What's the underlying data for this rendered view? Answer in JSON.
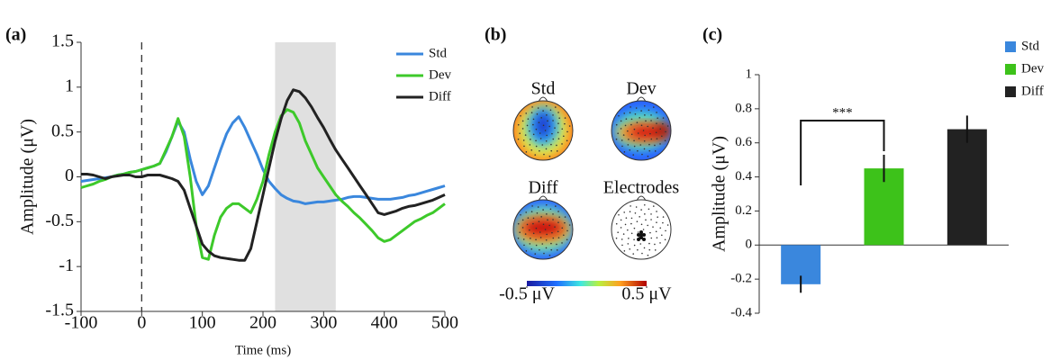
{
  "chart_data": [
    {
      "type": "line",
      "panel_label": "(a)",
      "xlabel": "Time (ms)",
      "ylabel": "Amplitude (μV)",
      "x": [
        -100,
        -90,
        -80,
        -70,
        -60,
        -50,
        -40,
        -30,
        -20,
        -10,
        0,
        10,
        20,
        30,
        40,
        50,
        60,
        70,
        80,
        90,
        100,
        110,
        120,
        130,
        140,
        150,
        160,
        170,
        180,
        190,
        200,
        210,
        220,
        230,
        240,
        250,
        260,
        270,
        280,
        290,
        300,
        310,
        320,
        330,
        340,
        350,
        360,
        370,
        380,
        390,
        400,
        410,
        420,
        430,
        440,
        450,
        460,
        470,
        480,
        490,
        500
      ],
      "series": [
        {
          "name": "Std",
          "color": "#3a87dd",
          "values": [
            -0.05,
            -0.04,
            -0.03,
            -0.02,
            -0.01,
            0.0,
            0.02,
            0.03,
            0.05,
            0.06,
            0.08,
            0.1,
            0.12,
            0.15,
            0.28,
            0.45,
            0.62,
            0.5,
            0.2,
            -0.05,
            -0.2,
            -0.1,
            0.1,
            0.3,
            0.48,
            0.6,
            0.67,
            0.55,
            0.4,
            0.25,
            0.08,
            -0.05,
            -0.13,
            -0.2,
            -0.24,
            -0.27,
            -0.28,
            -0.3,
            -0.29,
            -0.28,
            -0.28,
            -0.27,
            -0.26,
            -0.25,
            -0.23,
            -0.22,
            -0.22,
            -0.23,
            -0.24,
            -0.25,
            -0.25,
            -0.25,
            -0.24,
            -0.23,
            -0.21,
            -0.2,
            -0.18,
            -0.16,
            -0.14,
            -0.12,
            -0.1
          ]
        },
        {
          "name": "Dev",
          "color": "#3dc92a",
          "values": [
            -0.12,
            -0.1,
            -0.08,
            -0.05,
            -0.03,
            0.0,
            0.02,
            0.03,
            0.05,
            0.06,
            0.08,
            0.1,
            0.12,
            0.15,
            0.3,
            0.45,
            0.65,
            0.45,
            0.0,
            -0.55,
            -0.9,
            -0.92,
            -0.65,
            -0.45,
            -0.35,
            -0.3,
            -0.3,
            -0.35,
            -0.4,
            -0.25,
            -0.05,
            0.25,
            0.5,
            0.68,
            0.75,
            0.72,
            0.6,
            0.4,
            0.25,
            0.1,
            0.0,
            -0.1,
            -0.2,
            -0.27,
            -0.33,
            -0.4,
            -0.46,
            -0.53,
            -0.6,
            -0.68,
            -0.72,
            -0.7,
            -0.65,
            -0.6,
            -0.55,
            -0.5,
            -0.47,
            -0.43,
            -0.4,
            -0.35,
            -0.3
          ]
        },
        {
          "name": "Diff",
          "color": "#222222",
          "values": [
            0.03,
            0.03,
            0.02,
            0.0,
            -0.02,
            0.0,
            0.01,
            0.02,
            0.02,
            0.0,
            0.0,
            0.02,
            0.02,
            0.02,
            0.0,
            -0.02,
            -0.05,
            -0.15,
            -0.35,
            -0.55,
            -0.75,
            -0.83,
            -0.88,
            -0.9,
            -0.91,
            -0.92,
            -0.93,
            -0.93,
            -0.8,
            -0.5,
            -0.2,
            0.1,
            0.4,
            0.65,
            0.85,
            0.97,
            0.95,
            0.88,
            0.78,
            0.66,
            0.55,
            0.42,
            0.3,
            0.2,
            0.1,
            0.0,
            -0.1,
            -0.2,
            -0.3,
            -0.4,
            -0.42,
            -0.4,
            -0.38,
            -0.35,
            -0.33,
            -0.32,
            -0.3,
            -0.28,
            -0.26,
            -0.23,
            -0.2
          ]
        }
      ],
      "xlim": [
        -100,
        500
      ],
      "xticks": [
        -100,
        0,
        100,
        200,
        300,
        400,
        500
      ],
      "ylim": [
        -1.5,
        1.5
      ],
      "yticks": [
        -1.5,
        -1,
        -0.5,
        0,
        0.5,
        1,
        1.5
      ],
      "highlight": [
        220,
        320
      ],
      "vline": 0,
      "legend": "upper right"
    },
    {
      "type": "topomap",
      "panel_label": "(b)",
      "maps": [
        {
          "title": "Std"
        },
        {
          "title": "Dev"
        },
        {
          "title": "Diff"
        },
        {
          "title": "Electrodes"
        }
      ],
      "colorbar": {
        "range": [
          -0.5,
          0.5
        ],
        "ticks": [
          {
            "value": -0.5,
            "label": "-0.5 μV"
          },
          {
            "value": 0.5,
            "label": "0.5 μV"
          }
        ]
      }
    },
    {
      "type": "bar",
      "panel_label": "(c)",
      "ylabel": "Amplitude (μV)",
      "categories": [
        "Std",
        "Dev",
        "Diff"
      ],
      "values": [
        -0.23,
        0.45,
        0.68
      ],
      "errors": [
        0.05,
        0.08,
        0.08
      ],
      "colors": [
        "#3a87dd",
        "#3dc21a",
        "#222222"
      ],
      "ylim": [
        -0.4,
        1
      ],
      "yticks": [
        -0.4,
        -0.2,
        0,
        0.2,
        0.4,
        0.6,
        0.8,
        1
      ],
      "legend": "upper right",
      "annotation": "***"
    }
  ]
}
